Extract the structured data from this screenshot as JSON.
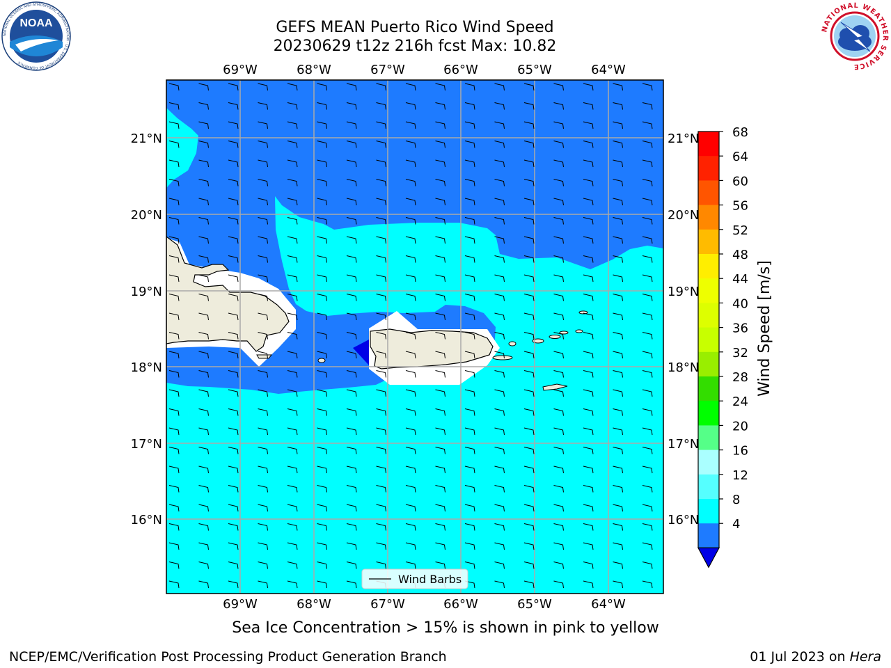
{
  "header": {
    "title_line1": "GEFS MEAN Puerto Rico Wind Speed",
    "title_line2": "20230629 t12z 216h fcst   Max: 10.82"
  },
  "logos": {
    "left": {
      "name": "noaa-logo",
      "text": "NOAA",
      "ring_text": "NATIONAL OCEANIC AND ATMOSPHERIC ADMINISTRATION · U.S. DEPARTMENT OF COMMERCE"
    },
    "right": {
      "name": "nws-logo",
      "ring_text": "NATIONAL WEATHER SERVICE"
    }
  },
  "map": {
    "lon_ticks": [
      "69°W",
      "68°W",
      "67°W",
      "66°W",
      "65°W",
      "64°W"
    ],
    "lat_ticks": [
      "21°N",
      "20°N",
      "19°N",
      "18°N",
      "17°N",
      "16°N"
    ],
    "legend_label": "Wind Barbs",
    "colors": {
      "ocean_4_8": "#1e7bff",
      "ocean_8_12": "#00ffff",
      "below_4": "#0000e6",
      "land": "#eeecdc"
    }
  },
  "colorbar": {
    "label": "Wind Speed [m/s]",
    "ticks": [
      "68",
      "64",
      "60",
      "56",
      "52",
      "48",
      "44",
      "40",
      "36",
      "32",
      "28",
      "24",
      "20",
      "16",
      "12",
      "8",
      "4"
    ],
    "colors": [
      "#ff0000",
      "#ff2200",
      "#ff5500",
      "#ff8800",
      "#ffbb00",
      "#ffee00",
      "#eeff00",
      "#ddff00",
      "#c8ff00",
      "#99ee00",
      "#33dd00",
      "#00ff00",
      "#55ff88",
      "#aaffff",
      "#55ffff",
      "#00ffff",
      "#1e7bff"
    ],
    "underflow_color": "#0000e6"
  },
  "footer": {
    "note": "Sea Ice Concentration > 15% is shown in pink to yellow",
    "branch": "NCEP/EMC/Verification Post Processing Product Generation Branch",
    "date": "01 Jul 2023 on",
    "host": "Hera"
  }
}
